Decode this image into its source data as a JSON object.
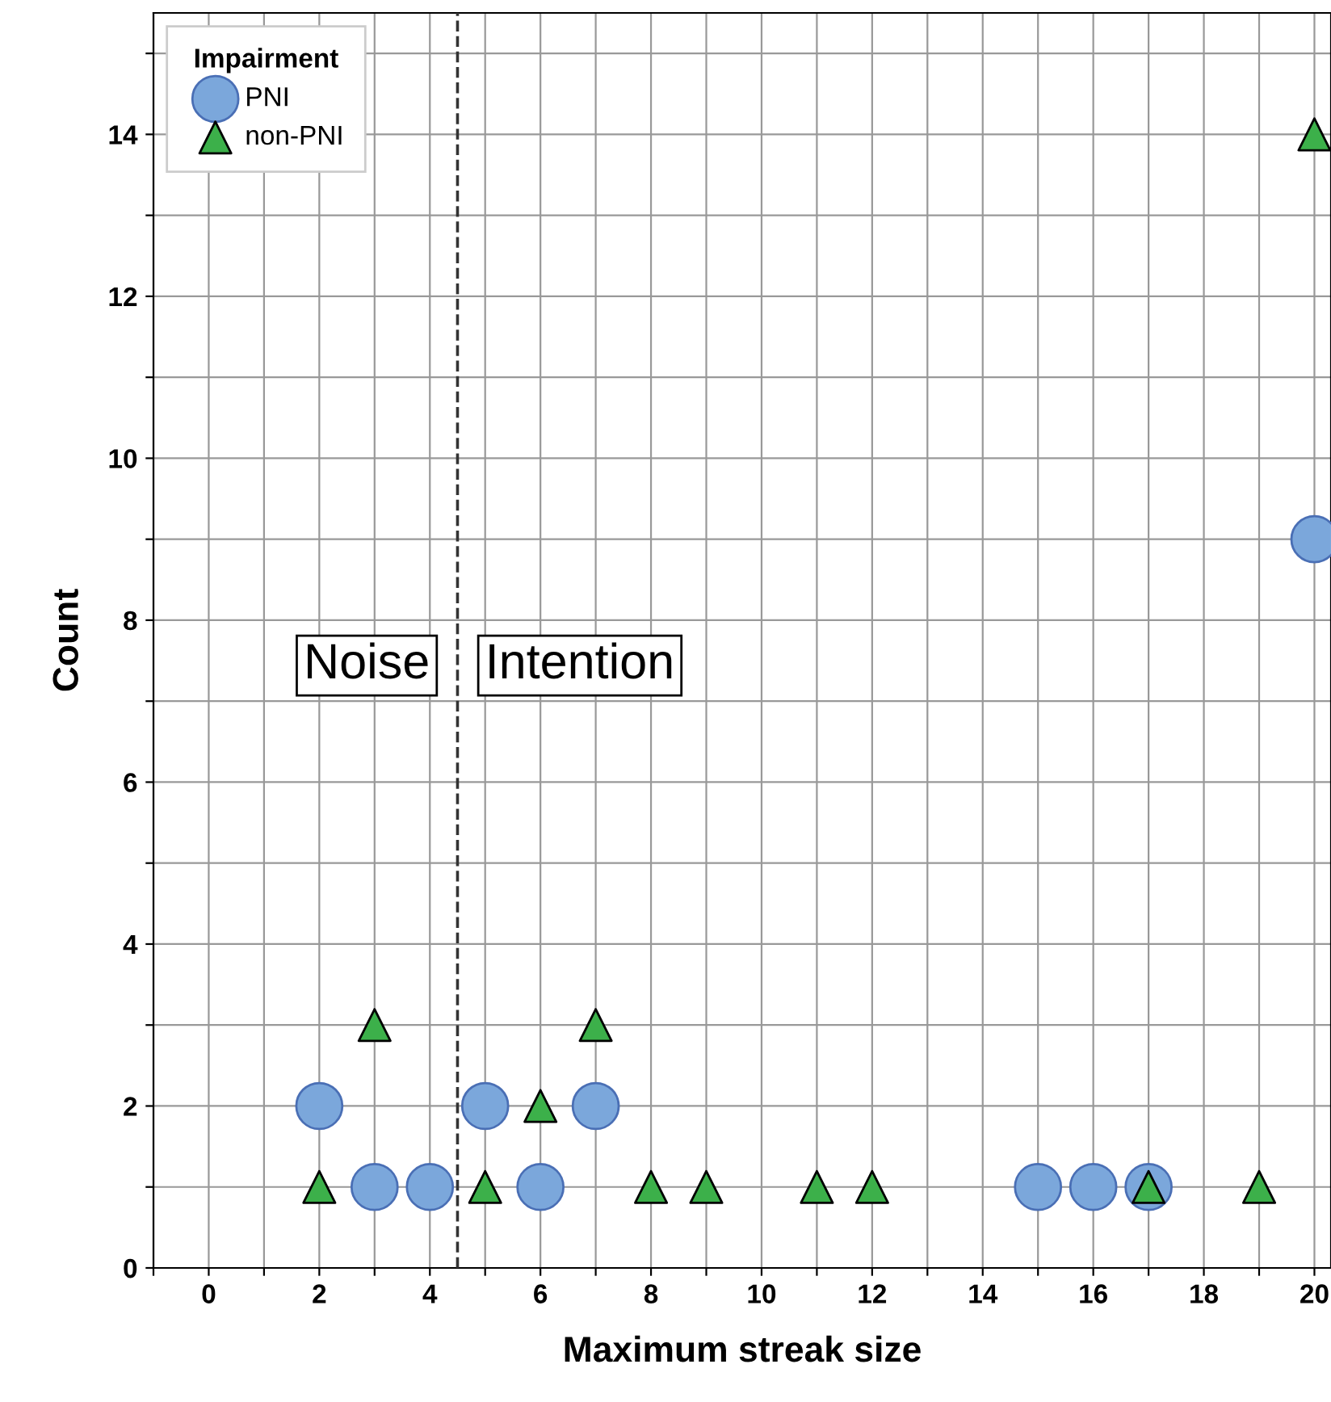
{
  "chart_data": {
    "type": "scatter",
    "xlabel": "Maximum streak size",
    "ylabel": "Count",
    "legend_title": "Impairment",
    "legend": "top left",
    "grid": true,
    "xlim": [
      -1,
      20.3
    ],
    "ylim": [
      0,
      15.5
    ],
    "xticks": [
      {
        "value": -1,
        "label": null
      },
      0,
      {
        "value": 1,
        "label": null
      },
      2,
      {
        "value": 3,
        "label": null
      },
      4,
      {
        "value": 5,
        "label": null
      },
      6,
      {
        "value": 7,
        "label": null
      },
      8,
      {
        "value": 9,
        "label": null
      },
      10,
      {
        "value": 11,
        "label": null
      },
      12,
      {
        "value": 13,
        "label": null
      },
      14,
      {
        "value": 15,
        "label": null
      },
      16,
      {
        "value": 17,
        "label": null
      },
      18,
      {
        "value": 19,
        "label": null
      },
      20
    ],
    "yticks": [
      0,
      {
        "value": 1,
        "label": null
      },
      2,
      {
        "value": 3,
        "label": null
      },
      4,
      {
        "value": 5,
        "label": null
      },
      6,
      {
        "value": 7,
        "label": null
      },
      8,
      {
        "value": 9,
        "label": null
      },
      10,
      {
        "value": 11,
        "label": null
      },
      12,
      {
        "value": 13,
        "label": null
      },
      14,
      {
        "value": 15,
        "label": null
      }
    ],
    "series": [
      {
        "name": "PNI",
        "color": "#7ba7db",
        "marker": "circle",
        "x": [
          2,
          3,
          4,
          5,
          6,
          7,
          15,
          16,
          17,
          20
        ],
        "values": [
          2,
          1,
          1,
          2,
          1,
          2,
          1,
          1,
          1,
          9
        ]
      },
      {
        "name": "non-PNI",
        "color": "#3cb04a",
        "marker": "triangle",
        "x": [
          2,
          3,
          5,
          6,
          7,
          8,
          9,
          11,
          12,
          17,
          19,
          20
        ],
        "values": [
          1,
          3,
          1,
          2,
          3,
          1,
          1,
          1,
          1,
          1,
          1,
          14
        ]
      }
    ],
    "ref_lines": [
      {
        "axis": "x",
        "value": 4.5,
        "line_style": "dashed",
        "color": "#333333"
      }
    ],
    "annotations": [
      "Noise",
      "Intention"
    ]
  }
}
